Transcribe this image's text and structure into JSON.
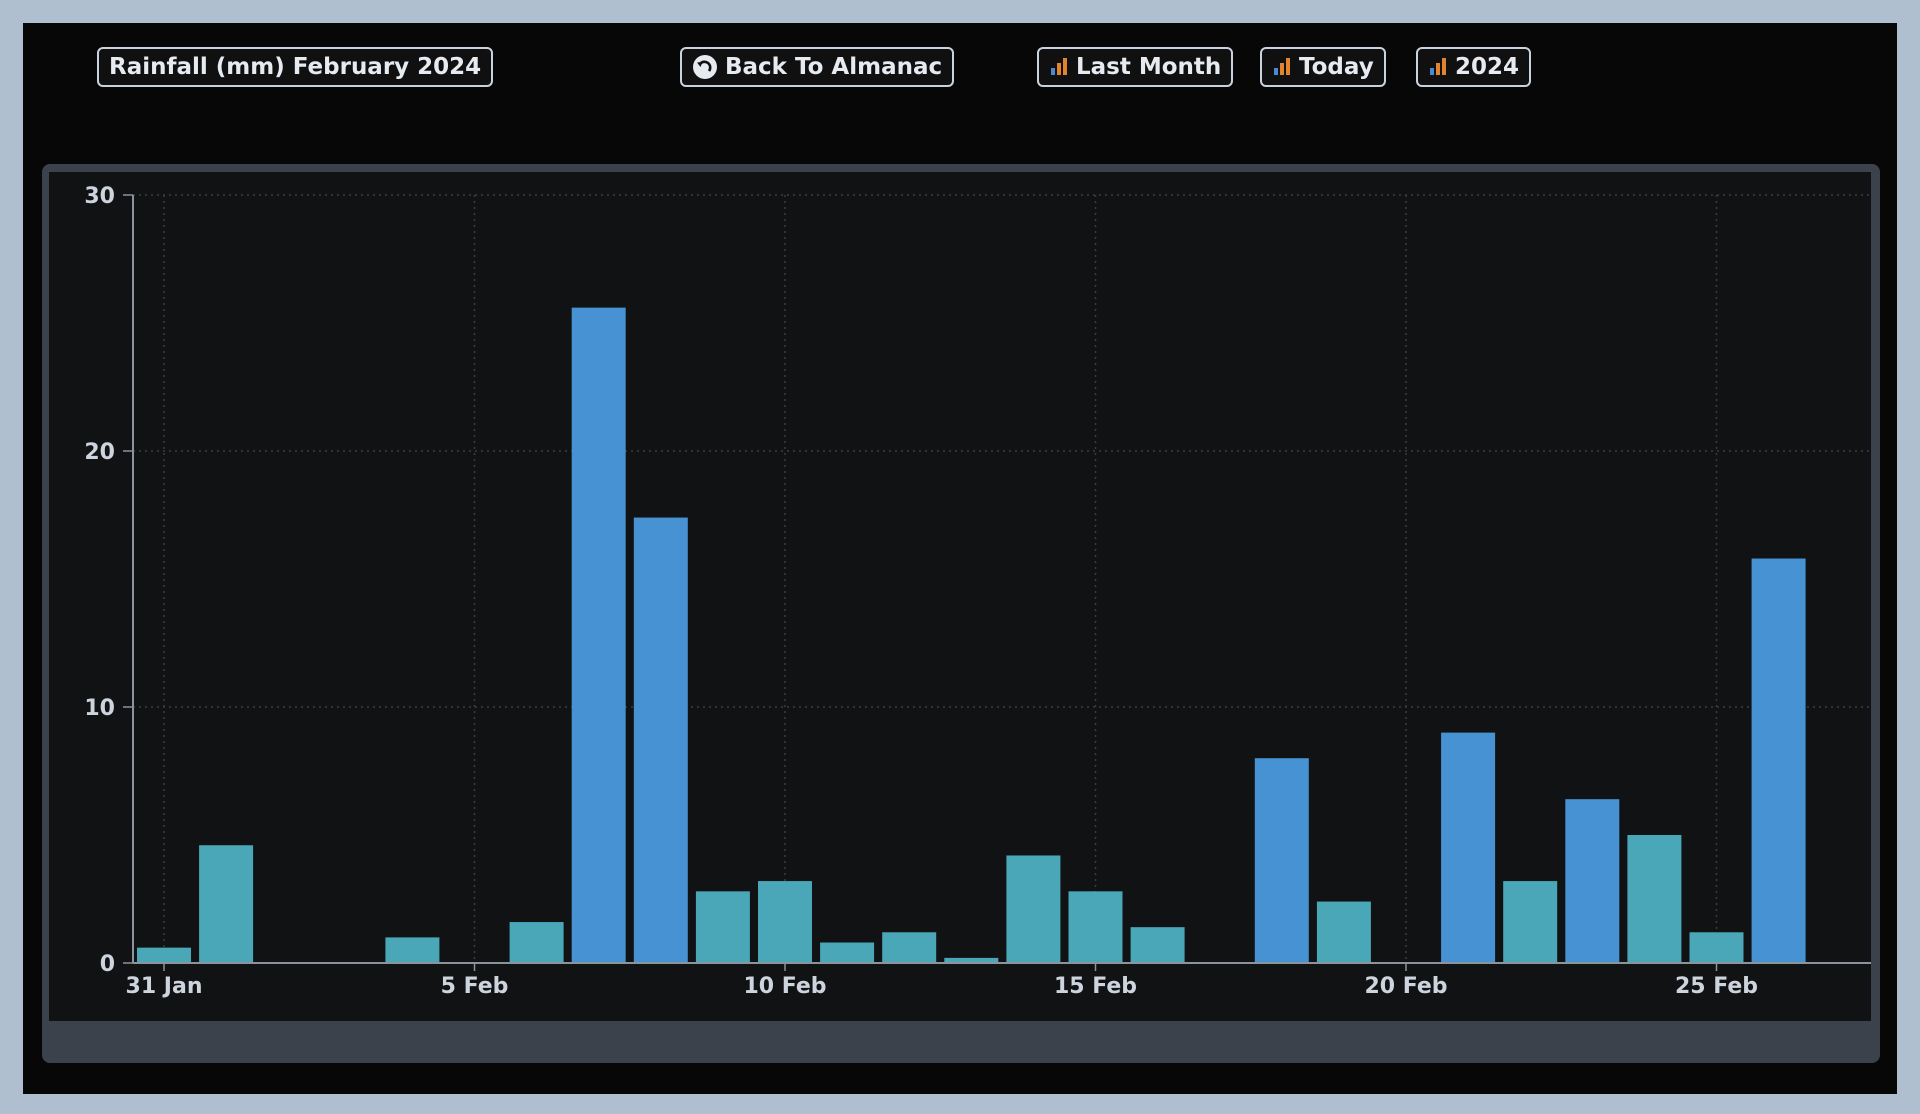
{
  "toolbar": {
    "title_label": "Rainfall (mm) February 2024",
    "back_label": "Back To Almanac",
    "last_month_label": "Last Month",
    "today_label": "Today",
    "year_label": "2024"
  },
  "icons": {
    "back": "circle-arrow-back-icon",
    "bars": "bar-chart-icon"
  },
  "colors": {
    "bar_blue": "#4792d3",
    "bar_teal": "#4aa7b8",
    "grid": "#3a3d42",
    "axis": "#8c939c"
  },
  "chart_data": {
    "type": "bar",
    "title": "Rainfall (mm) February 2024",
    "xlabel": "",
    "ylabel": "",
    "ylim": [
      0,
      30
    ],
    "yticks": [
      "0",
      "10",
      "20",
      "30"
    ],
    "x_tick_labels": [
      "31 Jan",
      "5 Feb",
      "10 Feb",
      "15 Feb",
      "20 Feb",
      "25 Feb"
    ],
    "grid": true,
    "categories": [
      "31 Jan",
      "1 Feb",
      "2 Feb",
      "3 Feb",
      "4 Feb",
      "5 Feb",
      "6 Feb",
      "7 Feb",
      "8 Feb",
      "9 Feb",
      "10 Feb",
      "11 Feb",
      "12 Feb",
      "13 Feb",
      "14 Feb",
      "15 Feb",
      "16 Feb",
      "17 Feb",
      "18 Feb",
      "19 Feb",
      "20 Feb",
      "21 Feb",
      "22 Feb",
      "23 Feb",
      "24 Feb",
      "25 Feb",
      "26 Feb"
    ],
    "values": [
      0.6,
      4.6,
      0,
      0,
      1.0,
      0,
      1.6,
      25.6,
      17.4,
      2.8,
      3.2,
      0.8,
      1.2,
      0.2,
      4.2,
      2.8,
      1.4,
      0,
      8.0,
      2.4,
      0,
      9.0,
      3.2,
      6.4,
      5.0,
      1.2,
      15.8
    ],
    "bar_color_group": [
      "teal",
      "teal",
      "teal",
      "teal",
      "teal",
      "teal",
      "teal",
      "blue",
      "blue",
      "teal",
      "teal",
      "teal",
      "teal",
      "teal",
      "teal",
      "teal",
      "teal",
      "teal",
      "blue",
      "teal",
      "teal",
      "blue",
      "teal",
      "blue",
      "teal",
      "teal",
      "blue"
    ]
  }
}
